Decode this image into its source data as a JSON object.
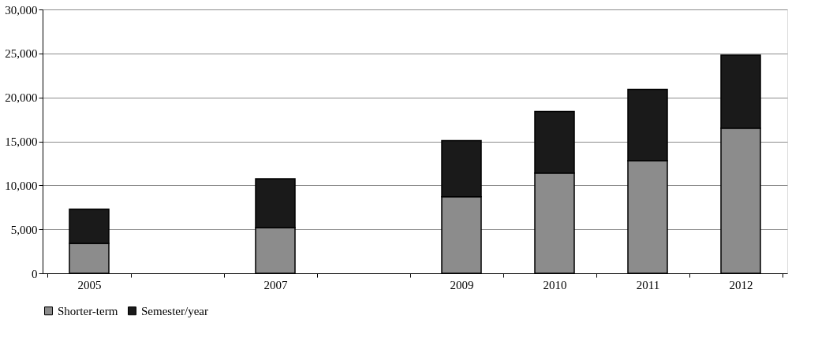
{
  "chart_data": {
    "type": "bar",
    "stacked": true,
    "categories": [
      "2005",
      null,
      "2007",
      null,
      "2009",
      "2010",
      "2011",
      "2012"
    ],
    "series": [
      {
        "name": "Shorter-term",
        "color": "#8c8c8c",
        "values": [
          3400,
          null,
          5200,
          null,
          8700,
          11400,
          12800,
          16500
        ]
      },
      {
        "name": "Semester/year",
        "color": "#1a1a1a",
        "values": [
          3900,
          null,
          5550,
          null,
          6400,
          7000,
          8100,
          8300
        ]
      }
    ],
    "ylim": [
      0,
      30000
    ],
    "yticks": [
      {
        "value": 0,
        "label": "0"
      },
      {
        "value": 5000,
        "label": "5,000"
      },
      {
        "value": 10000,
        "label": "10,000"
      },
      {
        "value": 15000,
        "label": "15,000"
      },
      {
        "value": 20000,
        "label": "20,000"
      },
      {
        "value": 25000,
        "label": "25,000"
      },
      {
        "value": 30000,
        "label": "30,000"
      }
    ],
    "grid": "y",
    "legend": "bottom"
  }
}
